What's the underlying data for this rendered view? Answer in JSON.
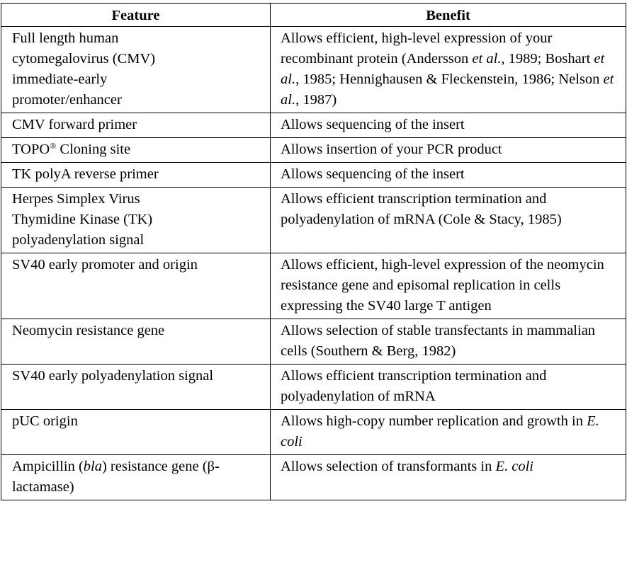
{
  "headers": {
    "feature": "Feature",
    "benefit": "Benefit"
  },
  "rows": [
    {
      "feature": [
        "Full length human ",
        "cytomegalovirus (CMV) ",
        "immediate-early ",
        "promoter/enhancer"
      ],
      "benefit": [
        "Allows efficient, high-level expression of your recombinant protein (Andersson ",
        "et al.",
        ", 1989; Boshart ",
        "et al.",
        ", 1985; Hennighausen & Fleckenstein, 1986; Nelson ",
        "et al.",
        ", 1987)"
      ]
    },
    {
      "feature": [
        "CMV forward primer"
      ],
      "benefit": [
        "Allows sequencing of the insert"
      ]
    },
    {
      "feature": [
        "TOPO",
        "®",
        " Cloning site"
      ],
      "benefit": [
        "Allows insertion of your PCR product"
      ]
    },
    {
      "feature": [
        "TK polyA reverse primer"
      ],
      "benefit": [
        "Allows sequencing of the insert"
      ]
    },
    {
      "feature": [
        "Herpes Simplex Virus ",
        "Thymidine Kinase (TK) ",
        "polyadenylation signal"
      ],
      "benefit": [
        "Allows efficient transcription termination and polyadenylation of mRNA (Cole & Stacy, 1985)"
      ]
    },
    {
      "feature": [
        "SV40 early promoter and origin"
      ],
      "benefit": [
        "Allows efficient, high-level expression of the neomycin resistance gene and episomal replication in cells expressing the SV40 large T antigen"
      ]
    },
    {
      "feature": [
        "Neomycin resistance gene"
      ],
      "benefit": [
        "Allows selection of stable transfectants in mammalian cells (Southern & Berg, 1982)"
      ]
    },
    {
      "feature": [
        "SV40 early polyadenylation signal"
      ],
      "benefit": [
        "Allows efficient transcription termination and polyadenylation of mRNA"
      ]
    },
    {
      "feature": [
        "pUC origin"
      ],
      "benefit": [
        "Allows high-copy number replication and growth in ",
        "E. coli"
      ]
    },
    {
      "feature": [
        "Ampicillin (",
        "bla",
        ") resistance gene (β-lactamase)"
      ],
      "benefit": [
        "Allows selection of transformants in ",
        "E. coli"
      ]
    }
  ]
}
